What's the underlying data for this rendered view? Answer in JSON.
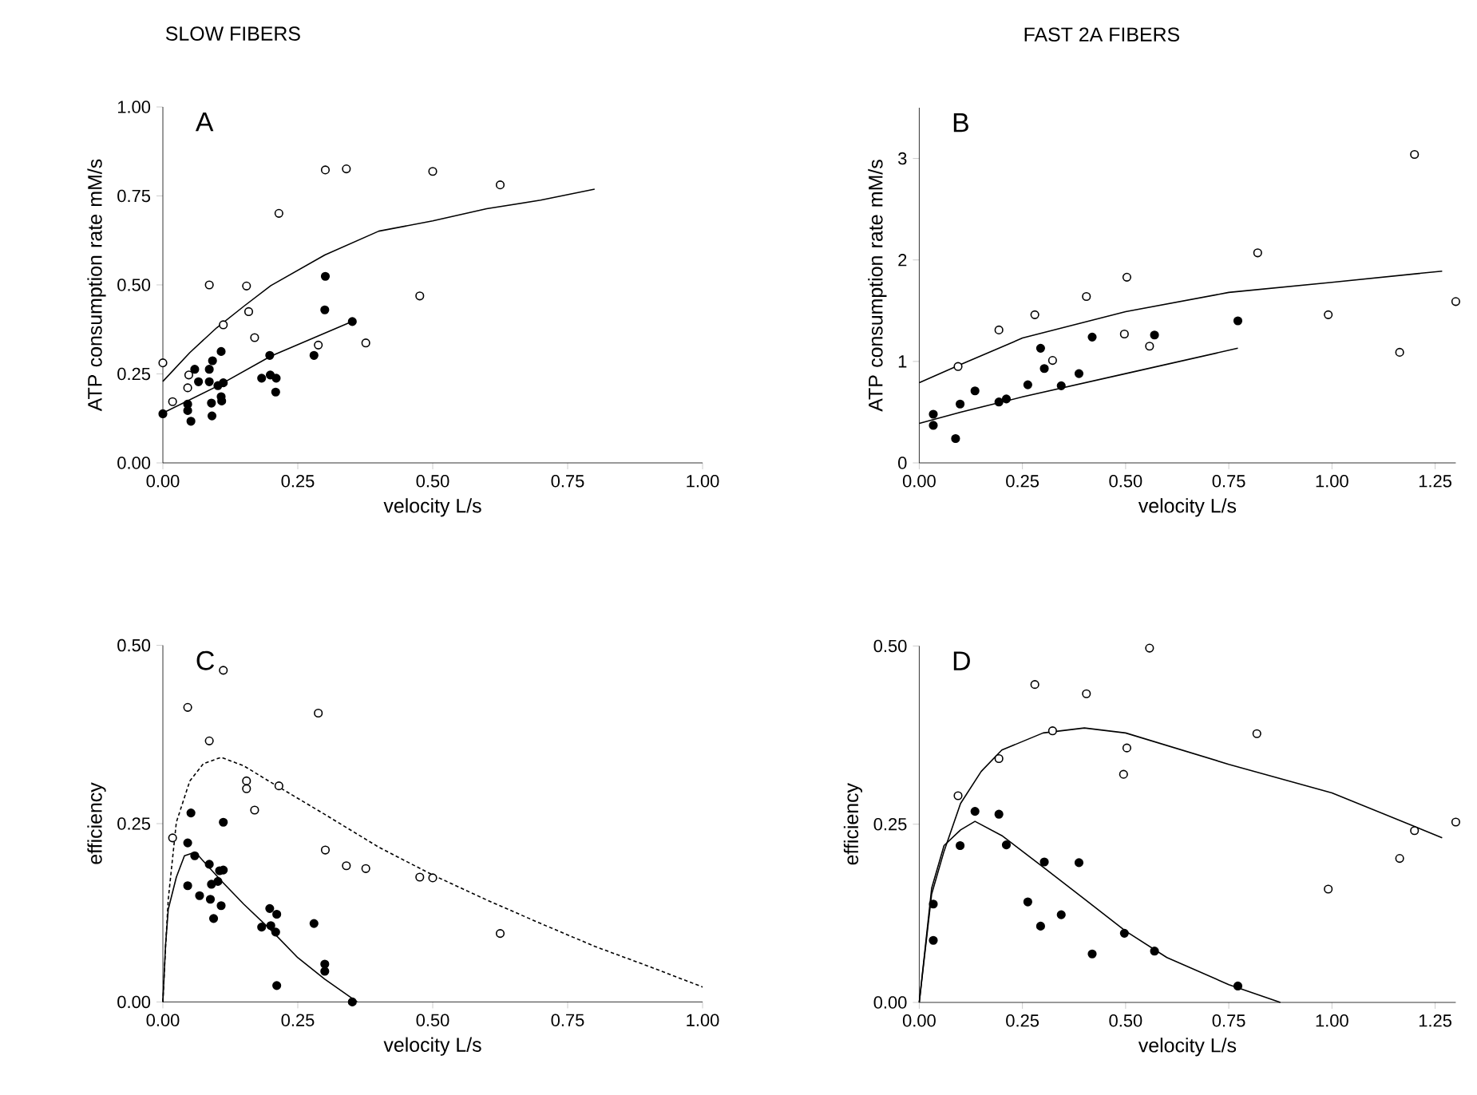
{
  "chart_data": [
    {
      "type": "scatter",
      "title": "SLOW FIBERS",
      "xlabel": "velocity L/s",
      "ylabel": "ATP consumption rate mM/s",
      "annotations": [
        "A"
      ],
      "xlim": [
        0,
        1
      ],
      "xticks": [
        {
          "value": 0,
          "label": "0.00"
        },
        {
          "value": 0.25,
          "label": "0.25"
        },
        {
          "value": 0.5,
          "label": "0.50"
        },
        {
          "value": 0.75,
          "label": "0.75"
        },
        {
          "value": 1,
          "label": "1.00"
        }
      ],
      "ylim": [
        0,
        1
      ],
      "yticks": [
        {
          "value": 0,
          "label": "0.00"
        },
        {
          "value": 0.25,
          "label": "0.25"
        },
        {
          "value": 0.5,
          "label": "0.50"
        },
        {
          "value": 0.75,
          "label": "0.75"
        },
        {
          "value": 1,
          "label": "1.00"
        }
      ],
      "series": [
        {
          "color": "#ffffff",
          "marker": "circle",
          "x": [
            0,
            0.018,
            0.046,
            0.048,
            0.086,
            0.112,
            0.155,
            0.159,
            0.17,
            0.215,
            0.288,
            0.301,
            0.34,
            0.376,
            0.476,
            0.5,
            0.625
          ],
          "values": [
            0.281,
            0.172,
            0.211,
            0.247,
            0.5,
            0.388,
            0.497,
            0.425,
            0.352,
            0.701,
            0.331,
            0.823,
            0.826,
            0.337,
            0.469,
            0.819,
            0.781
          ]
        },
        {
          "color": "#000000",
          "marker": "circle",
          "x": [
            0,
            0.046,
            0.046,
            0.052,
            0.059,
            0.066,
            0.086,
            0.092,
            0.086,
            0.09,
            0.091,
            0.102,
            0.108,
            0.108,
            0.109,
            0.112,
            0.183,
            0.198,
            0.199,
            0.21,
            0.209,
            0.28,
            0.3,
            0.301,
            0.351
          ],
          "values": [
            0.138,
            0.165,
            0.147,
            0.117,
            0.263,
            0.228,
            0.263,
            0.287,
            0.228,
            0.168,
            0.132,
            0.217,
            0.313,
            0.186,
            0.174,
            0.225,
            0.238,
            0.302,
            0.247,
            0.238,
            0.199,
            0.302,
            0.43,
            0.524,
            0.397
          ]
        },
        {
          "type": "line",
          "color": "#000000",
          "marker": "none",
          "line_style": "solid",
          "x": [
            0,
            0.05,
            0.1,
            0.15,
            0.2,
            0.3,
            0.4,
            0.5,
            0.6,
            0.7,
            0.8
          ],
          "values": [
            0.229,
            0.31,
            0.38,
            0.44,
            0.498,
            0.584,
            0.651,
            0.68,
            0.714,
            0.738,
            0.769
          ]
        },
        {
          "type": "line",
          "color": "#000000",
          "marker": "none",
          "line_style": "solid",
          "x": [
            0,
            0.1,
            0.2,
            0.35
          ],
          "values": [
            0.14,
            0.215,
            0.3,
            0.397
          ]
        }
      ]
    },
    {
      "type": "scatter",
      "title": "FAST 2A FIBERS",
      "xlabel": "velocity L/s",
      "ylabel": "ATP consumption rate mM/s",
      "annotations": [
        "B"
      ],
      "xlim": [
        0,
        1.3
      ],
      "xticks": [
        {
          "value": 0,
          "label": "0.00"
        },
        {
          "value": 0.25,
          "label": "0.25"
        },
        {
          "value": 0.5,
          "label": "0.50"
        },
        {
          "value": 0.75,
          "label": "0.75"
        },
        {
          "value": 1,
          "label": "1.00"
        },
        {
          "value": 1.25,
          "label": "1.25"
        }
      ],
      "ylim": [
        0,
        3.5
      ],
      "yticks": [
        0,
        1,
        2,
        3
      ],
      "series": [
        {
          "color": "#ffffff",
          "marker": "circle",
          "x": [
            0.094,
            0.193,
            0.28,
            0.323,
            0.405,
            0.497,
            0.503,
            0.558,
            0.82,
            0.991,
            1.164,
            1.2,
            1.3
          ],
          "values": [
            0.95,
            1.31,
            1.46,
            1.01,
            1.64,
            1.27,
            1.83,
            1.15,
            2.07,
            1.46,
            1.09,
            3.04,
            1.59
          ]
        },
        {
          "color": "#000000",
          "marker": "circle",
          "x": [
            0.034,
            0.034,
            0.088,
            0.099,
            0.135,
            0.193,
            0.211,
            0.263,
            0.294,
            0.303,
            0.344,
            0.387,
            0.419,
            0.57,
            0.772
          ],
          "values": [
            0.48,
            0.37,
            0.24,
            0.58,
            0.71,
            0.6,
            0.63,
            0.77,
            1.13,
            0.93,
            0.76,
            0.88,
            1.24,
            1.26,
            1.4
          ]
        },
        {
          "type": "line",
          "color": "#000000",
          "marker": "none",
          "line_style": "solid",
          "x": [
            0,
            0.1,
            0.25,
            0.5,
            0.75,
            1,
            1.267
          ],
          "values": [
            0.79,
            0.97,
            1.23,
            1.49,
            1.68,
            1.78,
            1.89
          ]
        },
        {
          "type": "line",
          "color": "#000000",
          "marker": "none",
          "line_style": "solid",
          "x": [
            0,
            0.1,
            0.25,
            0.5,
            0.772
          ],
          "values": [
            0.39,
            0.5,
            0.65,
            0.88,
            1.13
          ]
        }
      ]
    },
    {
      "type": "scatter",
      "xlabel": "velocity L/s",
      "ylabel": "efficiency",
      "annotations": [
        "C"
      ],
      "xlim": [
        0,
        1
      ],
      "xticks": [
        {
          "value": 0,
          "label": "0.00"
        },
        {
          "value": 0.25,
          "label": "0.25"
        },
        {
          "value": 0.5,
          "label": "0.50"
        },
        {
          "value": 0.75,
          "label": "0.75"
        },
        {
          "value": 1,
          "label": "1.00"
        }
      ],
      "ylim": [
        0,
        0.5
      ],
      "yticks": [
        {
          "value": 0,
          "label": "0.00"
        },
        {
          "value": 0.25,
          "label": "0.25"
        },
        {
          "value": 0.5,
          "label": "0.50"
        }
      ],
      "series": [
        {
          "color": "#ffffff",
          "marker": "circle",
          "x": [
            0.018,
            0.046,
            0.086,
            0.112,
            0.155,
            0.155,
            0.17,
            0.215,
            0.288,
            0.301,
            0.34,
            0.376,
            0.476,
            0.5,
            0.625
          ],
          "values": [
            0.23,
            0.413,
            0.366,
            0.465,
            0.31,
            0.299,
            0.269,
            0.303,
            0.405,
            0.213,
            0.191,
            0.187,
            0.175,
            0.174,
            0.096
          ]
        },
        {
          "color": "#000000",
          "marker": "circle",
          "x": [
            0.046,
            0.049,
            0.052,
            0.046,
            0.059,
            0.068,
            0.086,
            0.088,
            0.09,
            0.094,
            0.102,
            0.108,
            0.112,
            0.112,
            0.105,
            0.183,
            0.198,
            0.2,
            0.209,
            0.211,
            0.211,
            0.28,
            0.3,
            0.3,
            0.351
          ],
          "values": [
            0.223,
            null,
            0.265,
            0.163,
            0.205,
            0.149,
            0.193,
            0.144,
            0.165,
            0.117,
            0.169,
            0.135,
            0.252,
            0.185,
            0.184,
            0.105,
            0.131,
            0.107,
            0.098,
            0.123,
            0.023,
            0.11,
            0.053,
            0.043,
            0
          ]
        },
        {
          "type": "line",
          "color": "#000000",
          "marker": "none",
          "line_style": "dashed",
          "x": [
            0,
            0.005,
            0.01,
            0.025,
            0.05,
            0.075,
            0.108,
            0.15,
            0.2,
            0.3,
            0.4,
            0.5,
            0.6,
            0.7,
            0.8,
            0.9,
            1
          ],
          "values": [
            0,
            0.077,
            0.144,
            0.252,
            0.31,
            0.334,
            0.343,
            0.331,
            0.308,
            0.263,
            0.217,
            0.178,
            0.143,
            0.11,
            0.078,
            0.05,
            0.021
          ]
        },
        {
          "type": "line",
          "color": "#000000",
          "marker": "none",
          "line_style": "solid",
          "x": [
            0,
            0.005,
            0.01,
            0.025,
            0.04,
            0.06,
            0.108,
            0.15,
            0.2,
            0.25,
            0.3,
            0.36
          ],
          "values": [
            0,
            0.08,
            0.13,
            0.175,
            0.205,
            0.21,
            0.17,
            0.137,
            0.101,
            0.062,
            0.032,
            0
          ]
        }
      ]
    },
    {
      "type": "scatter",
      "xlabel": "velocity L/s",
      "ylabel": "efficiency",
      "annotations": [
        "D"
      ],
      "xlim": [
        0,
        1.3
      ],
      "xticks": [
        {
          "value": 0,
          "label": "0.00"
        },
        {
          "value": 0.25,
          "label": "0.25"
        },
        {
          "value": 0.5,
          "label": "0.50"
        },
        {
          "value": 0.75,
          "label": "0.75"
        },
        {
          "value": 1,
          "label": "1.00"
        },
        {
          "value": 1.25,
          "label": "1.25"
        }
      ],
      "ylim": [
        0,
        0.5
      ],
      "yticks": [
        {
          "value": 0,
          "label": "0.00"
        },
        {
          "value": 0.25,
          "label": "0.25"
        },
        {
          "value": 0.5,
          "label": "0.50"
        }
      ],
      "series": [
        {
          "color": "#ffffff",
          "marker": "circle",
          "x": [
            0.094,
            0.193,
            0.28,
            0.323,
            0.405,
            0.495,
            0.503,
            0.558,
            0.818,
            0.991,
            1.164,
            1.2,
            1.3
          ],
          "values": [
            0.29,
            0.342,
            0.446,
            0.381,
            0.433,
            0.32,
            0.357,
            0.497,
            0.377,
            0.159,
            0.202,
            0.241,
            0.253
          ]
        },
        {
          "color": "#000000",
          "marker": "circle",
          "x": [
            0.034,
            0.034,
            0.099,
            0.135,
            0.193,
            0.211,
            0.263,
            0.294,
            0.303,
            0.344,
            0.387,
            0.419,
            0.497,
            0.57,
            0.772
          ],
          "values": [
            0.138,
            0.087,
            0.22,
            0.268,
            0.264,
            0.221,
            0.141,
            0.107,
            0.197,
            0.123,
            0.196,
            0.068,
            0.097,
            0.072,
            0.023
          ]
        },
        {
          "type": "line",
          "color": "#000000",
          "marker": "none",
          "line_style": "solid",
          "x": [
            0,
            0.03,
            0.06,
            0.1,
            0.15,
            0.2,
            0.3,
            0.4,
            0.5,
            0.75,
            1,
            1.267
          ],
          "values": [
            0,
            0.152,
            0.212,
            0.279,
            0.324,
            0.354,
            0.378,
            0.385,
            0.378,
            0.334,
            0.294,
            0.231
          ]
        },
        {
          "type": "line",
          "color": "#000000",
          "marker": "none",
          "line_style": "solid",
          "x": [
            0,
            0.03,
            0.06,
            0.1,
            0.135,
            0.2,
            0.3,
            0.4,
            0.5,
            0.6,
            0.75,
            0.875
          ],
          "values": [
            0,
            0.16,
            0.22,
            0.242,
            0.254,
            0.234,
            0.19,
            0.145,
            0.1,
            0.063,
            0.025,
            0
          ]
        }
      ]
    }
  ]
}
